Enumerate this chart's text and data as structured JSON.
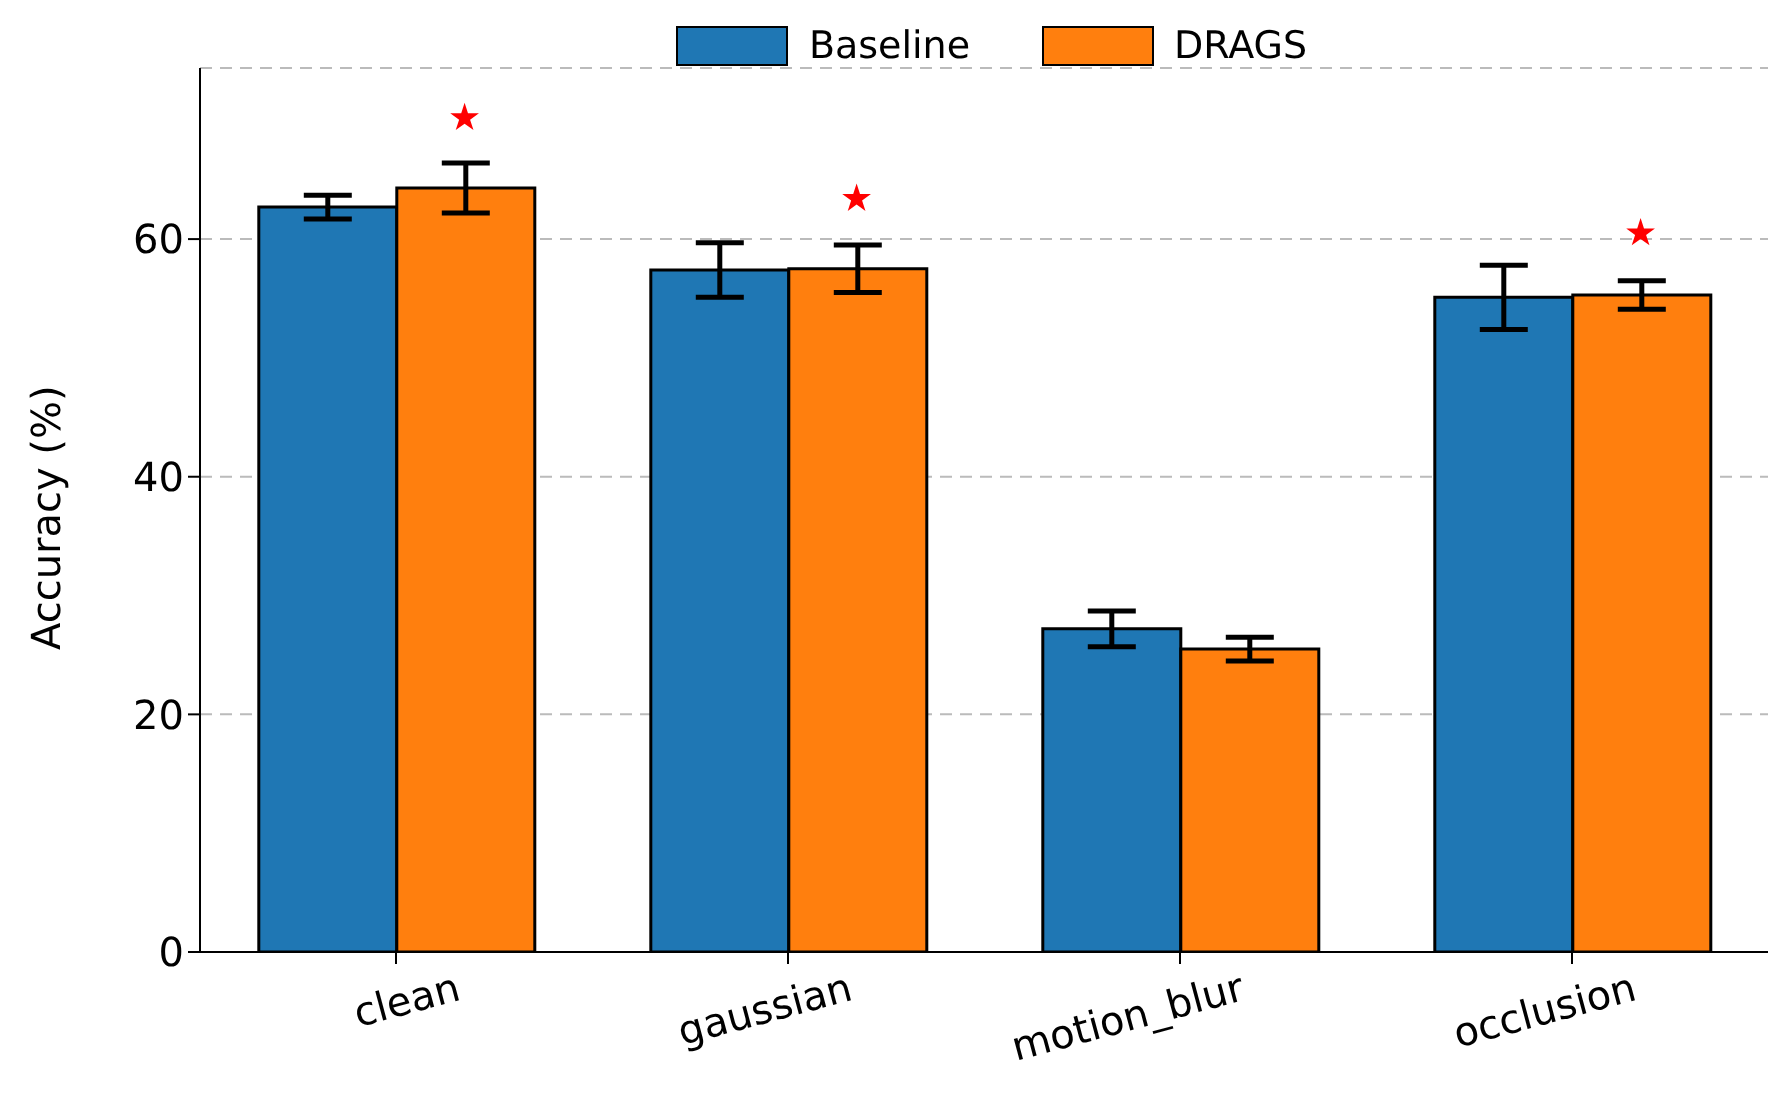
{
  "chart_data": {
    "type": "bar",
    "ylabel": "Accuracy (%)",
    "categories": [
      "clean",
      "gaussian",
      "motion_blur",
      "occlusion"
    ],
    "series": [
      {
        "name": "Baseline",
        "color": "#1f77b4",
        "values": [
          62.7,
          57.4,
          27.2,
          55.1
        ],
        "errors": [
          1.0,
          2.3,
          1.5,
          2.7
        ]
      },
      {
        "name": "DRAGS",
        "color": "#ff7f0e",
        "values": [
          64.3,
          57.5,
          25.5,
          55.3
        ],
        "errors": [
          2.1,
          2.0,
          1.0,
          1.2
        ]
      },
      {
        "type": "scatter",
        "color": "#ff0000",
        "marker": "star",
        "x": [
          "clean",
          "gaussian",
          "occlusion"
        ],
        "values": [
          70.2,
          63.4,
          60.5
        ]
      }
    ],
    "ylim": [
      0,
      74.4
    ],
    "yticks": [
      0,
      20,
      40,
      60
    ],
    "grid": "y",
    "legend": "top"
  }
}
